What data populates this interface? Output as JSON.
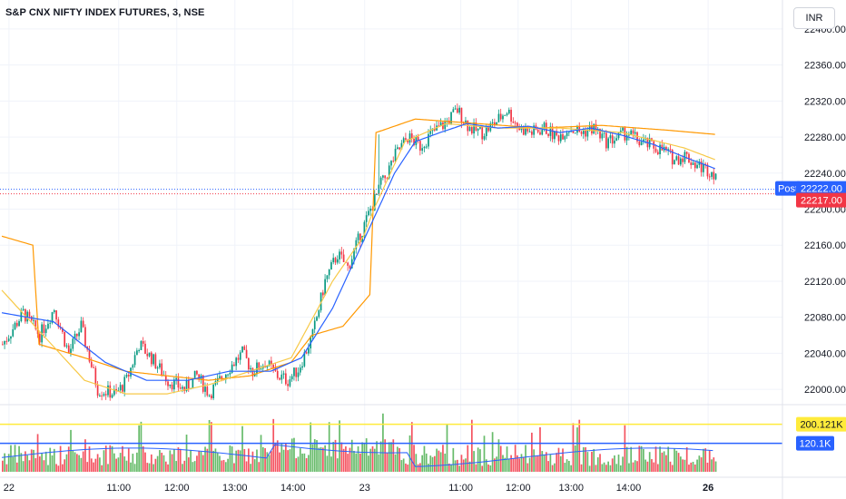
{
  "header": {
    "title": "S&P CNX NIFTY INDEX FUTURES, 3, NSE",
    "currency": "INR"
  },
  "chart_data": {
    "type": "candlestick",
    "y_ticks": [
      "22400.00",
      "22360.00",
      "22320.00",
      "22280.00",
      "22240.00",
      "22200.00",
      "22160.00",
      "22120.00",
      "22080.00",
      "22040.00",
      "22000.00"
    ],
    "y_values": [
      22400,
      22360,
      22320,
      22280,
      22240,
      22200,
      22160,
      22120,
      22080,
      22040,
      22000
    ],
    "ylim": [
      21985,
      22412
    ],
    "x_ticks": [
      {
        "label": "22",
        "bold": false,
        "frac": 0.01
      },
      {
        "label": "11:00",
        "bold": false,
        "frac": 0.163
      },
      {
        "label": "12:00",
        "bold": false,
        "frac": 0.244
      },
      {
        "label": "13:00",
        "bold": false,
        "frac": 0.325
      },
      {
        "label": "14:00",
        "bold": false,
        "frac": 0.406
      },
      {
        "label": "23",
        "bold": false,
        "frac": 0.506
      },
      {
        "label": "11:00",
        "bold": false,
        "frac": 0.64
      },
      {
        "label": "12:00",
        "bold": false,
        "frac": 0.72
      },
      {
        "label": "13:00",
        "bold": false,
        "frac": 0.794
      },
      {
        "label": "14:00",
        "bold": false,
        "frac": 0.874
      },
      {
        "label": "26",
        "bold": true,
        "frac": 0.985
      }
    ],
    "price_path": [
      [
        0,
        22050
      ],
      [
        10,
        22085
      ],
      [
        18,
        22060
      ],
      [
        25,
        22090
      ],
      [
        32,
        22040
      ],
      [
        38,
        22070
      ],
      [
        46,
        22000
      ],
      [
        55,
        21995
      ],
      [
        60,
        22010
      ],
      [
        66,
        22050
      ],
      [
        72,
        22035
      ],
      [
        80,
        22010
      ],
      [
        88,
        22000
      ],
      [
        94,
        22015
      ],
      [
        100,
        21995
      ],
      [
        105,
        22010
      ],
      [
        110,
        22025
      ],
      [
        116,
        22040
      ],
      [
        121,
        22020
      ],
      [
        127,
        22030
      ],
      [
        133,
        22015
      ],
      [
        138,
        22010
      ],
      [
        143,
        22022
      ],
      [
        150,
        22060
      ],
      [
        156,
        22120
      ],
      [
        162,
        22150
      ],
      [
        167,
        22135
      ],
      [
        172,
        22165
      ],
      [
        178,
        22200
      ],
      [
        184,
        22230
      ],
      [
        190,
        22260
      ],
      [
        196,
        22280
      ],
      [
        202,
        22270
      ],
      [
        208,
        22285
      ],
      [
        214,
        22295
      ],
      [
        220,
        22310
      ],
      [
        226,
        22290
      ],
      [
        232,
        22285
      ],
      [
        238,
        22295
      ],
      [
        244,
        22310
      ],
      [
        250,
        22290
      ],
      [
        256,
        22285
      ],
      [
        262,
        22290
      ],
      [
        268,
        22280
      ],
      [
        274,
        22290
      ],
      [
        280,
        22285
      ],
      [
        286,
        22290
      ],
      [
        292,
        22275
      ],
      [
        298,
        22280
      ],
      [
        302,
        22285
      ],
      [
        308,
        22275
      ],
      [
        314,
        22270
      ],
      [
        320,
        22265
      ],
      [
        325,
        22255
      ],
      [
        330,
        22260
      ],
      [
        335,
        22250
      ],
      [
        340,
        22245
      ],
      [
        345,
        22240
      ]
    ],
    "candle_count": 346,
    "ma_fast": [
      [
        0,
        22085
      ],
      [
        25,
        22075
      ],
      [
        50,
        22030
      ],
      [
        70,
        22010
      ],
      [
        90,
        22010
      ],
      [
        110,
        22020
      ],
      [
        130,
        22020
      ],
      [
        145,
        22035
      ],
      [
        160,
        22090
      ],
      [
        175,
        22165
      ],
      [
        190,
        22240
      ],
      [
        200,
        22275
      ],
      [
        212,
        22285
      ],
      [
        225,
        22295
      ],
      [
        240,
        22290
      ],
      [
        255,
        22292
      ],
      [
        270,
        22285
      ],
      [
        285,
        22290
      ],
      [
        300,
        22282
      ],
      [
        315,
        22272
      ],
      [
        330,
        22258
      ],
      [
        345,
        22245
      ]
    ],
    "ma_slow": [
      [
        0,
        22170
      ],
      [
        15,
        22160
      ],
      [
        18,
        22050
      ],
      [
        40,
        22035
      ],
      [
        60,
        22020
      ],
      [
        80,
        22015
      ],
      [
        100,
        22010
      ],
      [
        120,
        22015
      ],
      [
        140,
        22030
      ],
      [
        150,
        22060
      ],
      [
        165,
        22070
      ],
      [
        178,
        22105
      ],
      [
        181,
        22285
      ],
      [
        200,
        22300
      ],
      [
        230,
        22295
      ],
      [
        260,
        22290
      ],
      [
        290,
        22293
      ],
      [
        320,
        22288
      ],
      [
        345,
        22283
      ]
    ],
    "ma_mid": [
      [
        0,
        22110
      ],
      [
        20,
        22060
      ],
      [
        40,
        22010
      ],
      [
        60,
        21995
      ],
      [
        80,
        21995
      ],
      [
        100,
        22005
      ],
      [
        120,
        22020
      ],
      [
        140,
        22035
      ],
      [
        160,
        22120
      ],
      [
        175,
        22170
      ],
      [
        180,
        22200
      ],
      [
        195,
        22275
      ],
      [
        215,
        22295
      ],
      [
        240,
        22290
      ],
      [
        270,
        22290
      ],
      [
        300,
        22285
      ],
      [
        330,
        22268
      ],
      [
        345,
        22255
      ]
    ],
    "post_label": "Post",
    "post_price": "22222.00",
    "last_price": "22217.00",
    "last_value": 22217,
    "post_value": 22222,
    "volume": {
      "label_high": "200.121K",
      "label_avg": "120.1K",
      "max": 260,
      "high_line": 200.121,
      "avg_line": 120.1
    },
    "colors": {
      "up": "#089981",
      "down": "#f23645",
      "ma_fast": "#2962ff",
      "ma_slow": "#ff9800",
      "ma_mid": "#f7c948",
      "vol_up": "#4caf50",
      "vol_down": "#f23645",
      "high_line": "#ffeb3b",
      "avg_line": "#2962ff",
      "post_bg": "#2962ff",
      "last_bg": "#f23645"
    }
  }
}
